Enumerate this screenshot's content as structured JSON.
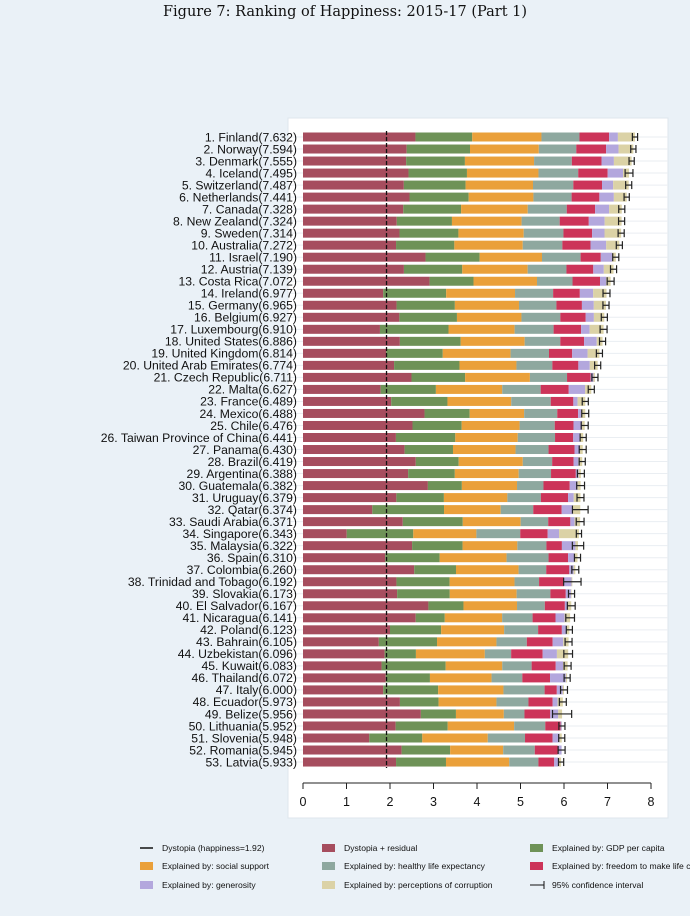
{
  "title": "Figure 7: Ranking of Happiness: 2015-17 (Part 1)",
  "chart_data": {
    "type": "bar",
    "orientation": "horizontal-stacked",
    "xlim": [
      0,
      8
    ],
    "xticks": [
      0,
      1,
      2,
      3,
      4,
      5,
      6,
      7,
      8
    ],
    "dystopia_line": 1.92,
    "grid": "horizontal lines",
    "legend_position": "bottom",
    "components": [
      {
        "key": "dr",
        "name": "Dystopia + residual",
        "color": "#a64d5e"
      },
      {
        "key": "gdp",
        "name": "Explained by: GDP per capita",
        "color": "#6e9257"
      },
      {
        "key": "ss",
        "name": "Explained by: social support",
        "color": "#eaa03a"
      },
      {
        "key": "hle",
        "name": "Explained by: healthy life expectancy",
        "color": "#8ea89f"
      },
      {
        "key": "fr",
        "name": "Explained by: freedom to make life choices",
        "color": "#cc3459"
      },
      {
        "key": "gen",
        "name": "Explained by: generosity",
        "color": "#b3a7dd"
      },
      {
        "key": "cor",
        "name": "Explained by: perceptions of corruption",
        "color": "#dbd2a6"
      }
    ],
    "legend": {
      "dystopia": "Dystopia (happiness=1.92)",
      "ci": "95% confidence interval"
    },
    "countries": [
      {
        "label": "1. Finland(7.632)",
        "score": 7.632,
        "dr": 2.585,
        "gdp": 1.305,
        "ss": 1.592,
        "hle": 0.874,
        "fr": 0.681,
        "gen": 0.202,
        "cor": 0.393,
        "ci": 0.06
      },
      {
        "label": "2. Norway(7.594)",
        "score": 7.594,
        "dr": 2.383,
        "gdp": 1.456,
        "ss": 1.582,
        "hle": 0.861,
        "fr": 0.686,
        "gen": 0.286,
        "cor": 0.34,
        "ci": 0.06
      },
      {
        "label": "3. Denmark(7.555)",
        "score": 7.555,
        "dr": 2.371,
        "gdp": 1.351,
        "ss": 1.59,
        "hle": 0.868,
        "fr": 0.683,
        "gen": 0.284,
        "cor": 0.408,
        "ci": 0.06
      },
      {
        "label": "4. Iceland(7.495)",
        "score": 7.495,
        "dr": 2.426,
        "gdp": 1.343,
        "ss": 1.644,
        "hle": 0.914,
        "fr": 0.677,
        "gen": 0.353,
        "cor": 0.138,
        "ci": 0.09
      },
      {
        "label": "5. Switzerland(7.487)",
        "score": 7.487,
        "dr": 2.318,
        "gdp": 1.42,
        "ss": 1.549,
        "hle": 0.927,
        "fr": 0.66,
        "gen": 0.256,
        "cor": 0.357,
        "ci": 0.07
      },
      {
        "label": "6. Netherlands(7.441)",
        "score": 7.441,
        "dr": 2.448,
        "gdp": 1.361,
        "ss": 1.488,
        "hle": 0.878,
        "fr": 0.638,
        "gen": 0.333,
        "cor": 0.295,
        "ci": 0.06
      },
      {
        "label": "7. Canada(7.328)",
        "score": 7.328,
        "dr": 2.305,
        "gdp": 1.33,
        "ss": 1.532,
        "hle": 0.896,
        "fr": 0.653,
        "gen": 0.321,
        "cor": 0.291,
        "ci": 0.07
      },
      {
        "label": "8. New Zealand(7.324)",
        "score": 7.324,
        "dr": 2.156,
        "gdp": 1.268,
        "ss": 1.601,
        "hle": 0.876,
        "fr": 0.669,
        "gen": 0.365,
        "cor": 0.389,
        "ci": 0.07
      },
      {
        "label": "9. Sweden(7.314)",
        "score": 7.314,
        "dr": 2.218,
        "gdp": 1.355,
        "ss": 1.501,
        "hle": 0.913,
        "fr": 0.659,
        "gen": 0.285,
        "cor": 0.383,
        "ci": 0.07
      },
      {
        "label": "10. Australia(7.272)",
        "score": 7.272,
        "dr": 2.139,
        "gdp": 1.34,
        "ss": 1.573,
        "hle": 0.91,
        "fr": 0.647,
        "gen": 0.361,
        "cor": 0.302,
        "ci": 0.07
      },
      {
        "label": "11. Israel(7.190)",
        "score": 7.19,
        "dr": 2.817,
        "gdp": 1.244,
        "ss": 1.433,
        "hle": 0.888,
        "fr": 0.464,
        "gen": 0.262,
        "cor": 0.082,
        "ci": 0.07
      },
      {
        "label": "12. Austria(7.139)",
        "score": 7.139,
        "dr": 2.32,
        "gdp": 1.341,
        "ss": 1.504,
        "hle": 0.891,
        "fr": 0.617,
        "gen": 0.242,
        "cor": 0.224,
        "ci": 0.07
      },
      {
        "label": "13. Costa Rica(7.072)",
        "score": 7.072,
        "dr": 2.91,
        "gdp": 1.01,
        "ss": 1.459,
        "hle": 0.817,
        "fr": 0.632,
        "gen": 0.143,
        "cor": 0.101,
        "ci": 0.08
      },
      {
        "label": "14. Ireland(6.977)",
        "score": 6.977,
        "dr": 1.843,
        "gdp": 1.448,
        "ss": 1.583,
        "hle": 0.876,
        "fr": 0.614,
        "gen": 0.307,
        "cor": 0.306,
        "ci": 0.08
      },
      {
        "label": "15. Germany(6.965)",
        "score": 6.965,
        "dr": 2.151,
        "gdp": 1.34,
        "ss": 1.474,
        "hle": 0.861,
        "fr": 0.586,
        "gen": 0.273,
        "cor": 0.28,
        "ci": 0.07
      },
      {
        "label": "16. Belgium(6.927)",
        "score": 6.927,
        "dr": 2.215,
        "gdp": 1.324,
        "ss": 1.483,
        "hle": 0.894,
        "fr": 0.583,
        "gen": 0.188,
        "cor": 0.24,
        "ci": 0.07
      },
      {
        "label": "17. Luxembourg(6.910)",
        "score": 6.91,
        "dr": 1.769,
        "gdp": 1.576,
        "ss": 1.52,
        "hle": 0.896,
        "fr": 0.632,
        "gen": 0.196,
        "cor": 0.321,
        "ci": 0.08
      },
      {
        "label": "18. United States(6.886)",
        "score": 6.886,
        "dr": 2.227,
        "gdp": 1.398,
        "ss": 1.471,
        "hle": 0.819,
        "fr": 0.547,
        "gen": 0.291,
        "cor": 0.133,
        "ci": 0.07
      },
      {
        "label": "19. United Kingdom(6.814)",
        "score": 6.814,
        "dr": 1.912,
        "gdp": 1.301,
        "ss": 1.559,
        "hle": 0.883,
        "fr": 0.533,
        "gen": 0.354,
        "cor": 0.272,
        "ci": 0.07
      },
      {
        "label": "20. United Arab Emirates(6.774)",
        "score": 6.774,
        "dr": 2.094,
        "gdp": 1.503,
        "ss": 1.31,
        "hle": 0.825,
        "fr": 0.598,
        "gen": 0.262,
        "cor": 0.182,
        "ci": 0.07
      },
      {
        "label": "21. Czech Republic(6.711)",
        "score": 6.711,
        "dr": 2.494,
        "gdp": 1.233,
        "ss": 1.489,
        "hle": 0.854,
        "fr": 0.543,
        "gen": 0.064,
        "cor": 0.034,
        "ci": 0.07
      },
      {
        "label": "22. Malta(6.627)",
        "score": 6.627,
        "dr": 1.785,
        "gdp": 1.27,
        "ss": 1.525,
        "hle": 0.884,
        "fr": 0.645,
        "gen": 0.376,
        "cor": 0.142,
        "ci": 0.07
      },
      {
        "label": "23. France(6.489)",
        "score": 6.489,
        "dr": 2.028,
        "gdp": 1.293,
        "ss": 1.466,
        "hle": 0.908,
        "fr": 0.52,
        "gen": 0.098,
        "cor": 0.176,
        "ci": 0.07
      },
      {
        "label": "24. Mexico(6.488)",
        "score": 6.488,
        "dr": 2.794,
        "gdp": 1.038,
        "ss": 1.252,
        "hle": 0.761,
        "fr": 0.479,
        "gen": 0.069,
        "cor": 0.095,
        "ci": 0.08
      },
      {
        "label": "25. Chile(6.476)",
        "score": 6.476,
        "dr": 2.517,
        "gdp": 1.131,
        "ss": 1.331,
        "hle": 0.808,
        "fr": 0.431,
        "gen": 0.197,
        "cor": 0.061,
        "ci": 0.08
      },
      {
        "label": "26. Taiwan Province of China(6.441)",
        "score": 6.441,
        "dr": 2.136,
        "gdp": 1.365,
        "ss": 1.436,
        "hle": 0.857,
        "fr": 0.418,
        "gen": 0.151,
        "cor": 0.078,
        "ci": 0.07
      },
      {
        "label": "27. Panama(6.430)",
        "score": 6.43,
        "dr": 2.336,
        "gdp": 1.112,
        "ss": 1.438,
        "hle": 0.759,
        "fr": 0.597,
        "gen": 0.125,
        "cor": 0.063,
        "ci": 0.08
      },
      {
        "label": "28. Brazil(6.419)",
        "score": 6.419,
        "dr": 2.593,
        "gdp": 0.986,
        "ss": 1.474,
        "hle": 0.675,
        "fr": 0.493,
        "gen": 0.11,
        "cor": 0.088,
        "ci": 0.07
      },
      {
        "label": "29. Argentina(6.388)",
        "score": 6.388,
        "dr": 2.417,
        "gdp": 1.073,
        "ss": 1.468,
        "hle": 0.744,
        "fr": 0.57,
        "gen": 0.062,
        "cor": 0.054,
        "ci": 0.08
      },
      {
        "label": "30. Guatemala(6.382)",
        "score": 6.382,
        "dr": 2.871,
        "gdp": 0.781,
        "ss": 1.268,
        "hle": 0.608,
        "fr": 0.604,
        "gen": 0.179,
        "cor": 0.071,
        "ci": 0.09
      },
      {
        "label": "31. Uruguay(6.379)",
        "score": 6.379,
        "dr": 2.146,
        "gdp": 1.093,
        "ss": 1.459,
        "hle": 0.771,
        "fr": 0.625,
        "gen": 0.13,
        "cor": 0.155,
        "ci": 0.08
      },
      {
        "label": "32. Qatar(6.374)",
        "score": 6.374,
        "dr": 1.593,
        "gdp": 1.649,
        "ss": 1.303,
        "hle": 0.748,
        "fr": 0.654,
        "gen": 0.256,
        "cor": 0.171,
        "ci": 0.18
      },
      {
        "label": "33. Saudi Arabia(6.371)",
        "score": 6.371,
        "dr": 2.294,
        "gdp": 1.379,
        "ss": 1.331,
        "hle": 0.633,
        "fr": 0.509,
        "gen": 0.098,
        "cor": 0.127,
        "ci": 0.09
      },
      {
        "label": "34. Singapore(6.343)",
        "score": 6.343,
        "dr": 1.006,
        "gdp": 1.529,
        "ss": 1.451,
        "hle": 1.008,
        "fr": 0.631,
        "gen": 0.261,
        "cor": 0.457,
        "ci": 0.06
      },
      {
        "label": "35. Malaysia(6.322)",
        "score": 6.322,
        "dr": 2.508,
        "gdp": 1.161,
        "ss": 1.258,
        "hle": 0.669,
        "fr": 0.356,
        "gen": 0.311,
        "cor": 0.059,
        "ci": 0.13
      },
      {
        "label": "36. Spain(6.310)",
        "score": 6.31,
        "dr": 1.891,
        "gdp": 1.251,
        "ss": 1.538,
        "hle": 0.965,
        "fr": 0.449,
        "gen": 0.142,
        "cor": 0.074,
        "ci": 0.07
      },
      {
        "label": "37. Colombia(6.260)",
        "score": 6.26,
        "dr": 2.557,
        "gdp": 0.96,
        "ss": 1.439,
        "hle": 0.635,
        "fr": 0.531,
        "gen": 0.099,
        "cor": 0.039,
        "ci": 0.08
      },
      {
        "label": "38. Trinidad and Tobago(6.192)",
        "score": 6.192,
        "dr": 2.148,
        "gdp": 1.223,
        "ss": 1.492,
        "hle": 0.564,
        "fr": 0.575,
        "gen": 0.171,
        "cor": 0.019,
        "ci": 0.2
      },
      {
        "label": "39. Slovakia(6.173)",
        "score": 6.173,
        "dr": 2.164,
        "gdp": 1.21,
        "ss": 1.537,
        "hle": 0.776,
        "fr": 0.354,
        "gen": 0.118,
        "cor": 0.014,
        "ci": 0.07
      },
      {
        "label": "40. El Salvador(6.167)",
        "score": 6.167,
        "dr": 2.883,
        "gdp": 0.806,
        "ss": 1.231,
        "hle": 0.639,
        "fr": 0.461,
        "gen": 0.065,
        "cor": 0.082,
        "ci": 0.09
      },
      {
        "label": "41. Nicaragua(6.141)",
        "score": 6.141,
        "dr": 2.591,
        "gdp": 0.668,
        "ss": 1.319,
        "hle": 0.7,
        "fr": 0.527,
        "gen": 0.208,
        "cor": 0.128,
        "ci": 0.1
      },
      {
        "label": "42. Poland(6.123)",
        "score": 6.123,
        "dr": 2.0,
        "gdp": 1.176,
        "ss": 1.448,
        "hle": 0.781,
        "fr": 0.546,
        "gen": 0.108,
        "cor": 0.064,
        "ci": 0.07
      },
      {
        "label": "43. Bahrain(6.105)",
        "score": 6.105,
        "dr": 1.743,
        "gdp": 1.338,
        "ss": 1.366,
        "hle": 0.698,
        "fr": 0.594,
        "gen": 0.243,
        "cor": 0.123,
        "ci": 0.08
      },
      {
        "label": "44. Uzbekistan(6.096)",
        "score": 6.096,
        "dr": 1.877,
        "gdp": 0.719,
        "ss": 1.584,
        "hle": 0.605,
        "fr": 0.724,
        "gen": 0.328,
        "cor": 0.259,
        "ci": 0.1
      },
      {
        "label": "45. Kuwait(6.083)",
        "score": 6.083,
        "dr": 1.806,
        "gdp": 1.474,
        "ss": 1.301,
        "hle": 0.675,
        "fr": 0.554,
        "gen": 0.167,
        "cor": 0.106,
        "ci": 0.08
      },
      {
        "label": "46. Thailand(6.072)",
        "score": 6.072,
        "dr": 1.902,
        "gdp": 1.016,
        "ss": 1.417,
        "hle": 0.707,
        "fr": 0.637,
        "gen": 0.364,
        "cor": 0.029,
        "ci": 0.07
      },
      {
        "label": "47. Italy(6.000)",
        "score": 6.0,
        "dr": 1.843,
        "gdp": 1.264,
        "ss": 1.501,
        "hle": 0.946,
        "fr": 0.281,
        "gen": 0.137,
        "cor": 0.028,
        "ci": 0.08
      },
      {
        "label": "48. Ecuador(5.973)",
        "score": 5.973,
        "dr": 2.228,
        "gdp": 0.889,
        "ss": 1.33,
        "hle": 0.736,
        "fr": 0.556,
        "gen": 0.114,
        "cor": 0.12,
        "ci": 0.08
      },
      {
        "label": "49. Belize(5.956)",
        "score": 5.956,
        "dr": 2.709,
        "gdp": 0.807,
        "ss": 1.101,
        "hle": 0.474,
        "fr": 0.593,
        "gen": 0.183,
        "cor": 0.089,
        "ci": 0.22
      },
      {
        "label": "50. Lithuania(5.952)",
        "score": 5.952,
        "dr": 2.13,
        "gdp": 1.197,
        "ss": 1.527,
        "hle": 0.716,
        "fr": 0.35,
        "gen": 0.026,
        "cor": 0.006,
        "ci": 0.07
      },
      {
        "label": "51. Slovenia(5.948)",
        "score": 5.948,
        "dr": 1.523,
        "gdp": 1.219,
        "ss": 1.506,
        "hle": 0.856,
        "fr": 0.633,
        "gen": 0.16,
        "cor": 0.051,
        "ci": 0.07
      },
      {
        "label": "52. Romania(5.945)",
        "score": 5.945,
        "dr": 2.267,
        "gdp": 1.116,
        "ss": 1.219,
        "hle": 0.726,
        "fr": 0.528,
        "gen": 0.088,
        "cor": 0.001,
        "ci": 0.08
      },
      {
        "label": "53. Latvia(5.933)",
        "score": 5.933,
        "dr": 2.139,
        "gdp": 1.148,
        "ss": 1.454,
        "hle": 0.671,
        "fr": 0.363,
        "gen": 0.092,
        "cor": 0.066,
        "ci": 0.06
      }
    ]
  }
}
